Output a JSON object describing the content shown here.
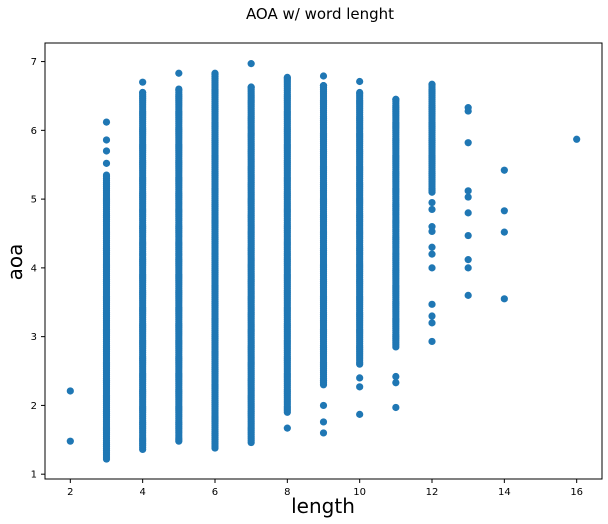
{
  "chart_data": {
    "type": "scatter",
    "title": "AOA w/ word lenght",
    "xlabel": "length",
    "ylabel": "aoa",
    "xlim": [
      1.3,
      16.7
    ],
    "ylim": [
      0.93,
      7.27
    ],
    "xticks": [
      2,
      4,
      6,
      8,
      10,
      12,
      14,
      16
    ],
    "yticks": [
      1,
      2,
      3,
      4,
      5,
      6,
      7
    ],
    "marker_color": "#1f77b4",
    "grid": false,
    "groups": [
      {
        "x": 2,
        "y": [
          1.48,
          2.21
        ]
      },
      {
        "x": 3,
        "y_ranges": [
          [
            1.22,
            5.35
          ]
        ],
        "y": [
          5.52,
          5.7,
          5.86,
          6.12
        ]
      },
      {
        "x": 4,
        "y_ranges": [
          [
            1.36,
            6.55
          ]
        ],
        "y": [
          6.7
        ]
      },
      {
        "x": 5,
        "y_ranges": [
          [
            1.48,
            6.6
          ]
        ],
        "y": [
          6.83
        ]
      },
      {
        "x": 6,
        "y_ranges": [
          [
            1.38,
            6.83
          ]
        ],
        "y": []
      },
      {
        "x": 7,
        "y_ranges": [
          [
            1.46,
            6.63
          ]
        ],
        "y": [
          6.97
        ]
      },
      {
        "x": 8,
        "y_ranges": [
          [
            1.9,
            6.77
          ]
        ],
        "y": [
          1.67
        ]
      },
      {
        "x": 9,
        "y_ranges": [
          [
            2.3,
            6.65
          ]
        ],
        "y": [
          1.6,
          1.76,
          2.0,
          6.79
        ]
      },
      {
        "x": 10,
        "y_ranges": [
          [
            2.6,
            6.55
          ]
        ],
        "y": [
          1.87,
          2.27,
          2.4,
          6.71
        ]
      },
      {
        "x": 11,
        "y_ranges": [
          [
            2.85,
            6.45
          ]
        ],
        "y": [
          1.97,
          2.33,
          2.42
        ]
      },
      {
        "x": 12,
        "y_ranges": [
          [
            5.1,
            6.67
          ]
        ],
        "y": [
          2.93,
          3.2,
          3.3,
          3.47,
          4.0,
          4.2,
          4.3,
          4.53,
          4.6,
          4.85,
          4.95
        ]
      },
      {
        "x": 13,
        "y": [
          3.6,
          4.0,
          4.12,
          4.47,
          4.8,
          5.03,
          5.12,
          5.82,
          6.28,
          6.33
        ]
      },
      {
        "x": 14,
        "y": [
          3.55,
          4.52,
          4.83,
          5.42
        ]
      },
      {
        "x": 16,
        "y": [
          5.87
        ]
      }
    ]
  }
}
